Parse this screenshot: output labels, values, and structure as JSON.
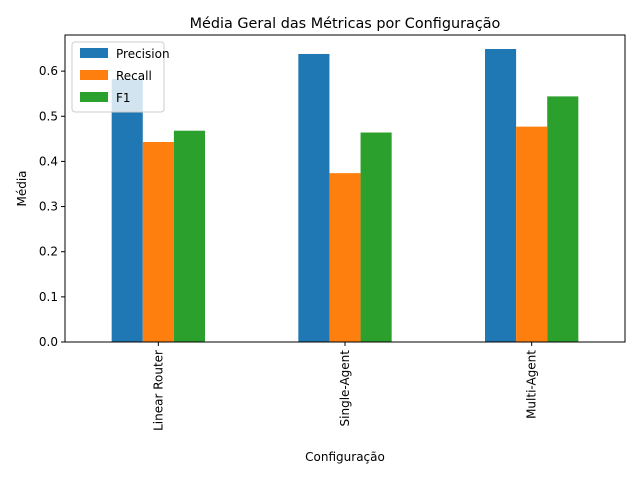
{
  "chart_data": {
    "type": "bar",
    "title": "Média Geral das Métricas por Configuração",
    "xlabel": "Configuração",
    "ylabel": "Média",
    "categories": [
      "Linear Router",
      "Single-Agent",
      "Multi-Agent"
    ],
    "series": [
      {
        "name": "Precision",
        "color": "#1f77b4",
        "values": [
          0.582,
          0.638,
          0.649
        ]
      },
      {
        "name": "Recall",
        "color": "#ff7f0e",
        "values": [
          0.443,
          0.374,
          0.477
        ]
      },
      {
        "name": "F1",
        "color": "#2ca02c",
        "values": [
          0.468,
          0.464,
          0.544
        ]
      }
    ],
    "ylim": [
      0,
      0.68
    ],
    "yticks": [
      0.0,
      0.1,
      0.2,
      0.3,
      0.4,
      0.5,
      0.6
    ],
    "ytick_labels": [
      "0.0",
      "0.1",
      "0.2",
      "0.3",
      "0.4",
      "0.5",
      "0.6"
    ],
    "x_tick_rotation": "vertical",
    "grid": false,
    "legend_position": "upper-left"
  }
}
